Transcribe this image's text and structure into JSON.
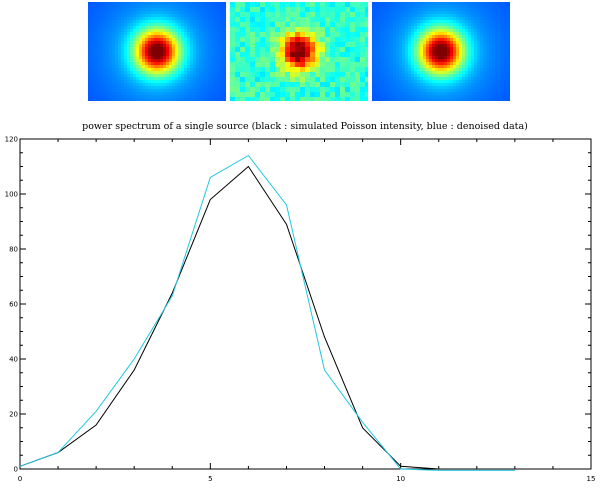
{
  "images": [
    {
      "name": "simulated-source-image",
      "style": "smooth"
    },
    {
      "name": "poisson-noisy-image",
      "style": "noisy"
    },
    {
      "name": "denoised-source-image",
      "style": "smooth"
    }
  ],
  "colors": {
    "simulated": "#000000",
    "denoised": "#22c8e0",
    "axis": "#000000"
  },
  "chart_data": {
    "type": "line",
    "title": "power spectrum of a single source (black : simulated Poisson intensity, blue : denoised data)",
    "xlabel": "",
    "ylabel": "",
    "xlim": [
      0,
      15
    ],
    "ylim": [
      0,
      120
    ],
    "x_ticks": [
      "0",
      "5",
      "10",
      "15"
    ],
    "y_ticks": [
      "0",
      "20",
      "40",
      "60",
      "80",
      "100",
      "120"
    ],
    "series": [
      {
        "color": "#000000",
        "x": [
          0,
          1,
          2,
          3,
          4,
          5,
          6,
          7,
          8,
          9,
          10,
          11,
          12,
          13
        ],
        "y": [
          1,
          6,
          16,
          36,
          64,
          98,
          110,
          89,
          48,
          15,
          1,
          0,
          0,
          0
        ]
      },
      {
        "color": "#22c8e0",
        "x": [
          0,
          1,
          2,
          3,
          4,
          5,
          6,
          7,
          8,
          9,
          10,
          11,
          12,
          13
        ],
        "y": [
          1,
          6,
          21,
          40,
          63,
          106,
          114,
          96,
          36,
          17,
          0,
          -0.5,
          -0.5,
          -0.5
        ]
      }
    ]
  }
}
